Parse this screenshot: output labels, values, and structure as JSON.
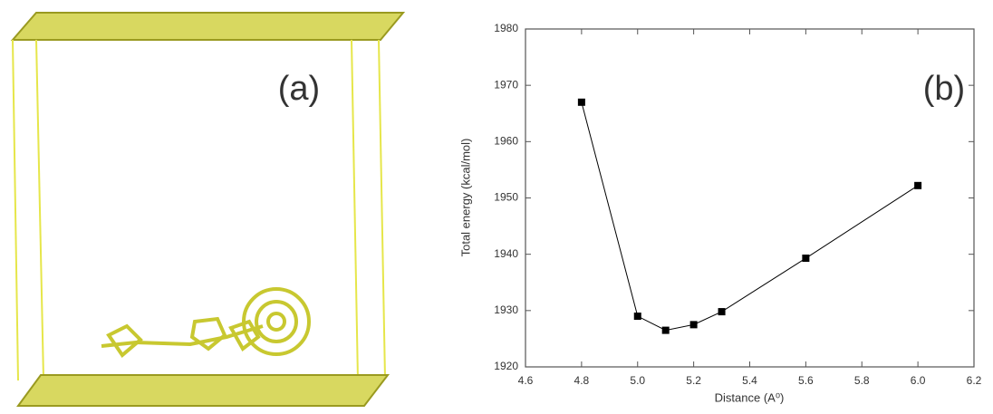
{
  "panel_a": {
    "label": "(a)"
  },
  "chart_data": {
    "type": "line",
    "label": "(b)",
    "x_label": "Distance (A⁰)",
    "y_label": "Total energy (kcal/mol)",
    "x": [
      4.8,
      5.0,
      5.1,
      5.2,
      5.3,
      5.6,
      6.0
    ],
    "series": [
      {
        "color": "#000000",
        "values": [
          1967,
          1929,
          1926.5,
          1927.5,
          1929.8,
          1939.3,
          1952.2
        ]
      }
    ],
    "xlim": [
      4.6,
      6.2
    ],
    "xticks": [
      4.6,
      4.8,
      {
        "value": 5,
        "label": "5.0"
      },
      5.2,
      5.4,
      5.6,
      5.8,
      {
        "value": 6,
        "label": "6.0"
      },
      6.2
    ],
    "ylim": [
      1920,
      1980
    ],
    "yticks": [
      1920,
      1930,
      1940,
      1950,
      1960,
      1970,
      1980
    ],
    "grid": false
  }
}
